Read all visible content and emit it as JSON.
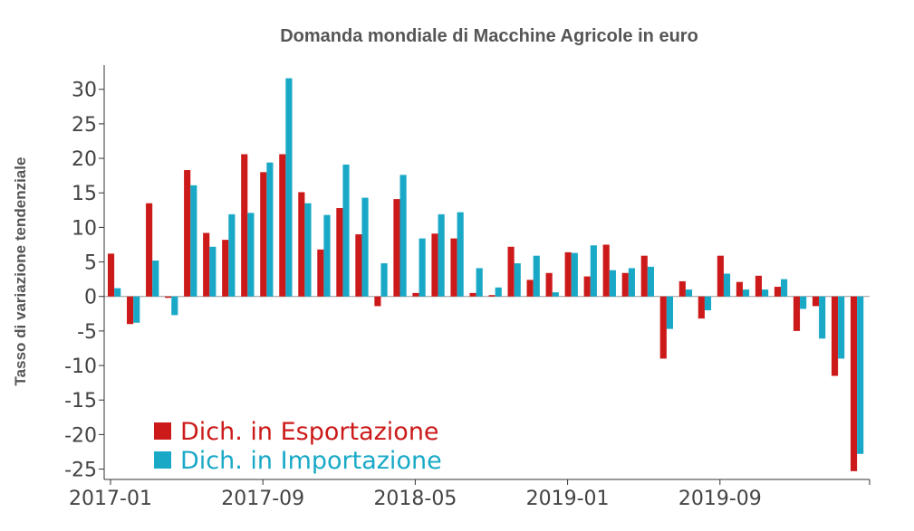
{
  "chart_data": {
    "type": "bar",
    "title": "Domanda mondiale di Macchine Agricole in euro",
    "ylabel": "Tasso di variazione tendenziale",
    "ylim": [
      -26.5,
      33.5
    ],
    "yticks": [
      30,
      25,
      20,
      15,
      10,
      5,
      0,
      -5,
      -10,
      -15,
      -20,
      -25
    ],
    "x_tick_labels": [
      "2017-01",
      "2017-09",
      "2018-05",
      "2019-01",
      "2019-09"
    ],
    "x_tick_indices": [
      0,
      8,
      16,
      24,
      32
    ],
    "legend_position": "bottom-left",
    "categories": [
      "2017-01",
      "2017-02",
      "2017-03",
      "2017-04",
      "2017-05",
      "2017-06",
      "2017-07",
      "2017-08",
      "2017-09",
      "2017-10",
      "2017-11",
      "2017-12",
      "2018-01",
      "2018-02",
      "2018-03",
      "2018-04",
      "2018-05",
      "2018-06",
      "2018-07",
      "2018-08",
      "2018-09",
      "2018-10",
      "2018-11",
      "2018-12",
      "2019-01",
      "2019-02",
      "2019-03",
      "2019-04",
      "2019-05",
      "2019-06",
      "2019-07",
      "2019-08",
      "2019-09",
      "2019-10",
      "2019-11",
      "2019-12",
      "2020-01",
      "2020-02",
      "2020-03",
      "2020-04"
    ],
    "series": [
      {
        "name": "Dich. in Esportazione",
        "color": "#cc1a1a",
        "values": [
          6.2,
          -4.0,
          13.5,
          -0.2,
          18.3,
          9.2,
          8.2,
          20.6,
          18.0,
          20.6,
          15.1,
          6.8,
          12.8,
          9.0,
          -1.4,
          14.1,
          0.5,
          9.1,
          8.4,
          0.5,
          0.2,
          7.2,
          2.4,
          3.4,
          6.4,
          2.9,
          7.5,
          3.4,
          5.9,
          -9.0,
          2.2,
          -3.2,
          5.9,
          2.1,
          3.0,
          1.4,
          -5.0,
          -1.4,
          -11.5,
          -25.3
        ]
      },
      {
        "name": "Dich. in Importazione",
        "color": "#19a9c7",
        "values": [
          1.2,
          -3.8,
          5.2,
          -2.7,
          16.1,
          7.2,
          11.9,
          12.1,
          19.4,
          31.6,
          13.5,
          11.8,
          19.1,
          14.3,
          4.8,
          17.6,
          8.4,
          11.9,
          12.2,
          4.1,
          1.3,
          4.8,
          5.9,
          0.6,
          6.3,
          7.4,
          3.8,
          4.1,
          4.3,
          -4.7,
          1.0,
          -2.0,
          3.3,
          1.0,
          1.0,
          2.5,
          -1.8,
          -6.1,
          -9.0,
          -22.8
        ]
      }
    ]
  }
}
